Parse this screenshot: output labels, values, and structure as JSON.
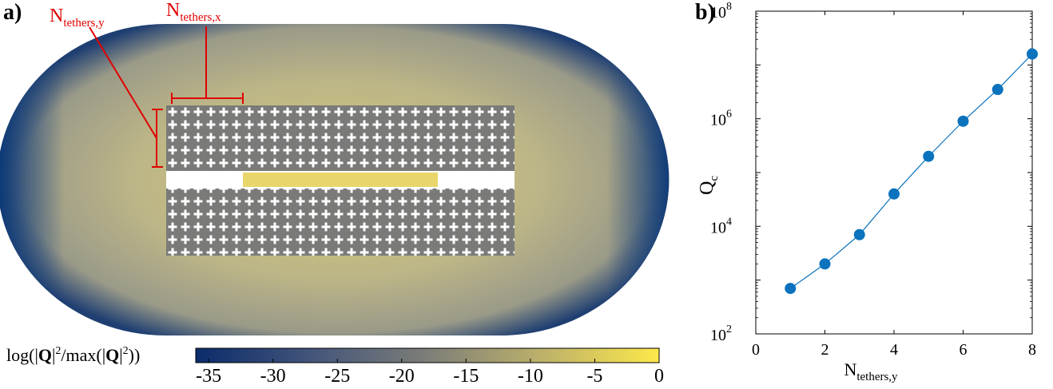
{
  "panel_a": {
    "label": "a)",
    "annotation_y_main": "N",
    "annotation_y_sub": "tethers,y",
    "annotation_x_main": "N",
    "annotation_x_sub": "tethers,x",
    "colorbar": {
      "label_prefix": "log(|",
      "label_bold1": "Q",
      "label_mid": "|",
      "label_sup1": "2",
      "label_mid2": "/max(|",
      "label_bold2": "Q",
      "label_mid3": "|",
      "label_sup2": "2",
      "label_suffix": "))",
      "ticks": [
        "-35",
        "-30",
        "-25",
        "-20",
        "-15",
        "-10",
        "-5",
        "0"
      ],
      "range": [
        -36,
        0
      ],
      "colors": {
        "low": "#0b2c6b",
        "mid": "#7d7e78",
        "high": "#fde94a"
      }
    },
    "colors": {
      "annotation": "#e00000",
      "field": "#b9b48a",
      "edge": "#0e3a78",
      "hole": "#ffffff",
      "crystal": "#7a7a78",
      "defect": "#e6d25a"
    }
  },
  "panel_b": {
    "label": "b)",
    "accent": "#0b72bd"
  },
  "chart_data": {
    "type": "line",
    "x": [
      1,
      2,
      3,
      4,
      5,
      6,
      7,
      8
    ],
    "y": [
      700,
      2000,
      7000,
      40000,
      200000,
      900000,
      3500000,
      16000000
    ],
    "xlim": [
      0,
      8
    ],
    "ylim": [
      100,
      100000000
    ],
    "yscale": "log",
    "xticks": [
      "0",
      "2",
      "4",
      "6",
      "8"
    ],
    "yticks_base": [
      "10",
      "10",
      "10",
      "10"
    ],
    "yticks_exp": [
      "2",
      "4",
      "6",
      "8"
    ],
    "xlabel_main": "N",
    "xlabel_sub": "tethers,y",
    "ylabel_main": "Q",
    "ylabel_sub": "c",
    "grid": false
  }
}
